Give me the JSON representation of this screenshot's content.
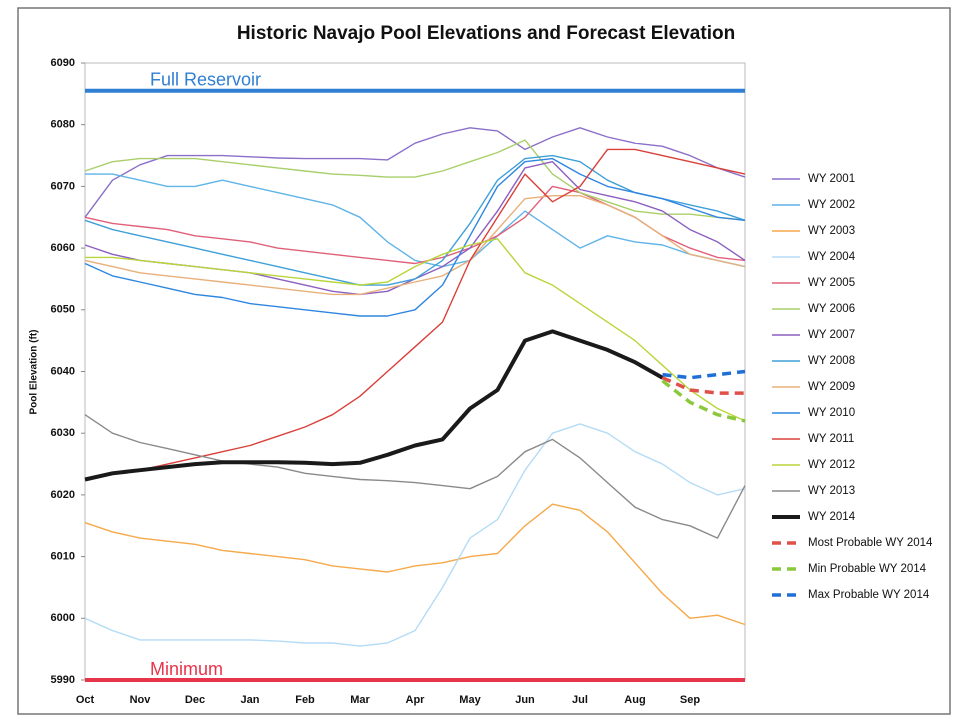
{
  "chart_data": {
    "type": "line",
    "title": "Historic Navajo Pool Elevations and Forecast Elevation",
    "y_label": "Pool Elevation (ft)",
    "categories": [
      "Oct",
      null,
      "Nov",
      null,
      "Dec",
      null,
      "Jan",
      null,
      "Feb",
      null,
      "Mar",
      null,
      "Apr",
      null,
      "May",
      null,
      "Jun",
      null,
      "Jul",
      null,
      "Aug",
      null,
      "Sep",
      null,
      null
    ],
    "ylim": [
      5990,
      6090
    ],
    "yticks": [
      5990,
      6000,
      6010,
      6020,
      6030,
      6040,
      6050,
      6060,
      6070,
      6080,
      6090
    ],
    "reference_lines": [
      {
        "label": "Full Reservoir",
        "value": 6085.5,
        "color": "#2f7fd4"
      },
      {
        "label": "Minimum",
        "value": 5990,
        "color": "#e8344a"
      }
    ],
    "legend": "right",
    "series": [
      {
        "name": "WY 2001",
        "color": "#8b6fc9",
        "style": "solid",
        "values": [
          6065,
          6071,
          6073.5,
          6075,
          6075,
          6075,
          6074.8,
          6074.6,
          6074.5,
          6074.5,
          6074.5,
          6074.3,
          6077,
          6078.5,
          6079.5,
          6079,
          6076,
          6078,
          6079.5,
          6078,
          6077,
          6076.5,
          6075,
          6073,
          6071.5
        ]
      },
      {
        "name": "WY 2002",
        "color": "#5fb4e8",
        "style": "solid",
        "values": [
          6072,
          6072,
          6071,
          6070,
          6070,
          6071,
          6070,
          6069,
          6068,
          6067,
          6065,
          6061,
          6058,
          6057,
          6058,
          6062,
          6066,
          6063,
          6060,
          6062,
          6061,
          6060.5,
          6059,
          6058,
          6057
        ]
      },
      {
        "name": "WY 2003",
        "color": "#f5a94a",
        "style": "solid",
        "values": [
          6015.5,
          6014,
          6013,
          6012.5,
          6012,
          6011,
          6010.5,
          6010,
          6009.5,
          6008.5,
          6008,
          6007.5,
          6008.5,
          6009,
          6010,
          6010.5,
          6015,
          6018.5,
          6017.5,
          6014,
          6009,
          6004,
          6000,
          6000.5,
          5999
        ]
      },
      {
        "name": "WY 2004",
        "color": "#b5dcf5",
        "style": "solid",
        "values": [
          6000,
          5998,
          5996.5,
          5996.5,
          5996.5,
          5996.5,
          5996.5,
          5996.3,
          5996,
          5996,
          5995.5,
          5996,
          5998,
          6005,
          6013,
          6016,
          6024,
          6030,
          6031.5,
          6030,
          6027,
          6025,
          6022,
          6020,
          6021
        ]
      },
      {
        "name": "WY 2005",
        "color": "#e0607a",
        "style": "solid",
        "values": [
          6065,
          6064,
          6063.5,
          6063,
          6062,
          6061.5,
          6061,
          6060,
          6059.5,
          6059,
          6058.5,
          6058,
          6057.5,
          6058.5,
          6060,
          6062,
          6065,
          6070,
          6069,
          6067,
          6065,
          6062,
          6060,
          6058.5,
          6058
        ]
      },
      {
        "name": "WY 2006",
        "color": "#a9cf6a",
        "style": "solid",
        "values": [
          6072.5,
          6074,
          6074.5,
          6074.5,
          6074.5,
          6074,
          6073.5,
          6073,
          6072.5,
          6072,
          6071.8,
          6071.5,
          6071.5,
          6072.5,
          6074,
          6075.5,
          6077.5,
          6072,
          6069,
          6067.5,
          6066,
          6065.5,
          6065.5,
          6065,
          6064.5
        ]
      },
      {
        "name": "WY 2007",
        "color": "#8c5fc0",
        "style": "solid",
        "values": [
          6060.5,
          6059,
          6058,
          6057.5,
          6057,
          6056.5,
          6056,
          6055,
          6054,
          6053,
          6052.5,
          6053,
          6055,
          6057,
          6060,
          6066,
          6073,
          6074,
          6069.5,
          6068.5,
          6067.5,
          6066,
          6063,
          6061,
          6058
        ]
      },
      {
        "name": "WY 2008",
        "color": "#3fa0d8",
        "style": "solid",
        "values": [
          6064.5,
          6063,
          6062,
          6061,
          6060,
          6059,
          6058,
          6057,
          6056,
          6055,
          6054,
          6054,
          6055,
          6058,
          6064,
          6071,
          6074.5,
          6075,
          6074,
          6071,
          6069,
          6068,
          6067,
          6066,
          6064.5
        ]
      },
      {
        "name": "WY 2009",
        "color": "#e8b07a",
        "style": "solid",
        "values": [
          6058,
          6057,
          6056,
          6055.5,
          6055,
          6054.5,
          6054,
          6053.5,
          6053,
          6052.5,
          6052.5,
          6053.5,
          6054.5,
          6055.5,
          6058,
          6063,
          6068,
          6068.5,
          6068.5,
          6067,
          6065,
          6062,
          6059,
          6058,
          6057
        ]
      },
      {
        "name": "WY 2010",
        "color": "#2f86e0",
        "style": "solid",
        "values": [
          6057.5,
          6055.5,
          6054.5,
          6053.5,
          6052.5,
          6052,
          6051,
          6050.5,
          6050,
          6049.5,
          6049,
          6049,
          6050,
          6054,
          6062,
          6070,
          6074,
          6074.5,
          6072,
          6070,
          6069,
          6068,
          6066.5,
          6065,
          6064.5
        ]
      },
      {
        "name": "WY 2011",
        "color": "#d9403a",
        "style": "solid",
        "values": [
          6022.5,
          6023.5,
          6024,
          6025,
          6026,
          6027,
          6028,
          6029.5,
          6031,
          6033,
          6036,
          6040,
          6044,
          6048,
          6058,
          6065,
          6072,
          6067.5,
          6070,
          6076,
          6076,
          6075,
          6074,
          6073,
          6072
        ]
      },
      {
        "name": "WY 2012",
        "color": "#b8d63a",
        "style": "solid",
        "values": [
          6058.5,
          6058.5,
          6058,
          6057.5,
          6057,
          6056.5,
          6056,
          6055.5,
          6055,
          6054.5,
          6054,
          6054.5,
          6057,
          6059,
          6060.5,
          6061.5,
          6056,
          6054,
          6051,
          6048,
          6045,
          6041,
          6037,
          6034,
          6032
        ]
      },
      {
        "name": "WY 2013",
        "color": "#8a8a8a",
        "style": "solid",
        "values": [
          6033,
          6030,
          6028.5,
          6027.5,
          6026.5,
          6025.5,
          6025,
          6024.5,
          6023.5,
          6023,
          6022.5,
          6022.3,
          6022,
          6021.5,
          6021,
          6023,
          6027,
          6029,
          6026,
          6022,
          6018,
          6016,
          6015,
          6013,
          6021.5
        ]
      },
      {
        "name": "WY 2014",
        "color": "#1a1a1a",
        "style": "bold",
        "values": [
          6022.5,
          6023.5,
          6024,
          6024.5,
          6025,
          6025.3,
          6025.3,
          6025.3,
          6025.2,
          6025,
          6025.2,
          6026.5,
          6028,
          6029,
          6034,
          6037,
          6045,
          6046.5,
          6045,
          6043.5,
          6041.5,
          6039,
          null,
          null,
          null
        ]
      },
      {
        "name": "Most Probable WY 2014",
        "color": "#e0504a",
        "style": "dashed",
        "values": [
          null,
          null,
          null,
          null,
          null,
          null,
          null,
          null,
          null,
          null,
          null,
          null,
          null,
          null,
          null,
          null,
          null,
          null,
          null,
          null,
          null,
          6039,
          6037,
          6036.5,
          6036.5
        ]
      },
      {
        "name": "Min Probable WY 2014",
        "color": "#8cc83c",
        "style": "dashed",
        "values": [
          null,
          null,
          null,
          null,
          null,
          null,
          null,
          null,
          null,
          null,
          null,
          null,
          null,
          null,
          null,
          null,
          null,
          null,
          null,
          null,
          null,
          6038.5,
          6035,
          6033,
          6032
        ]
      },
      {
        "name": "Max Probable WY 2014",
        "color": "#1f70d6",
        "style": "dashed",
        "values": [
          null,
          null,
          null,
          null,
          null,
          null,
          null,
          null,
          null,
          null,
          null,
          null,
          null,
          null,
          null,
          null,
          null,
          null,
          null,
          null,
          null,
          6039.5,
          6039,
          6039.5,
          6040
        ]
      }
    ]
  }
}
